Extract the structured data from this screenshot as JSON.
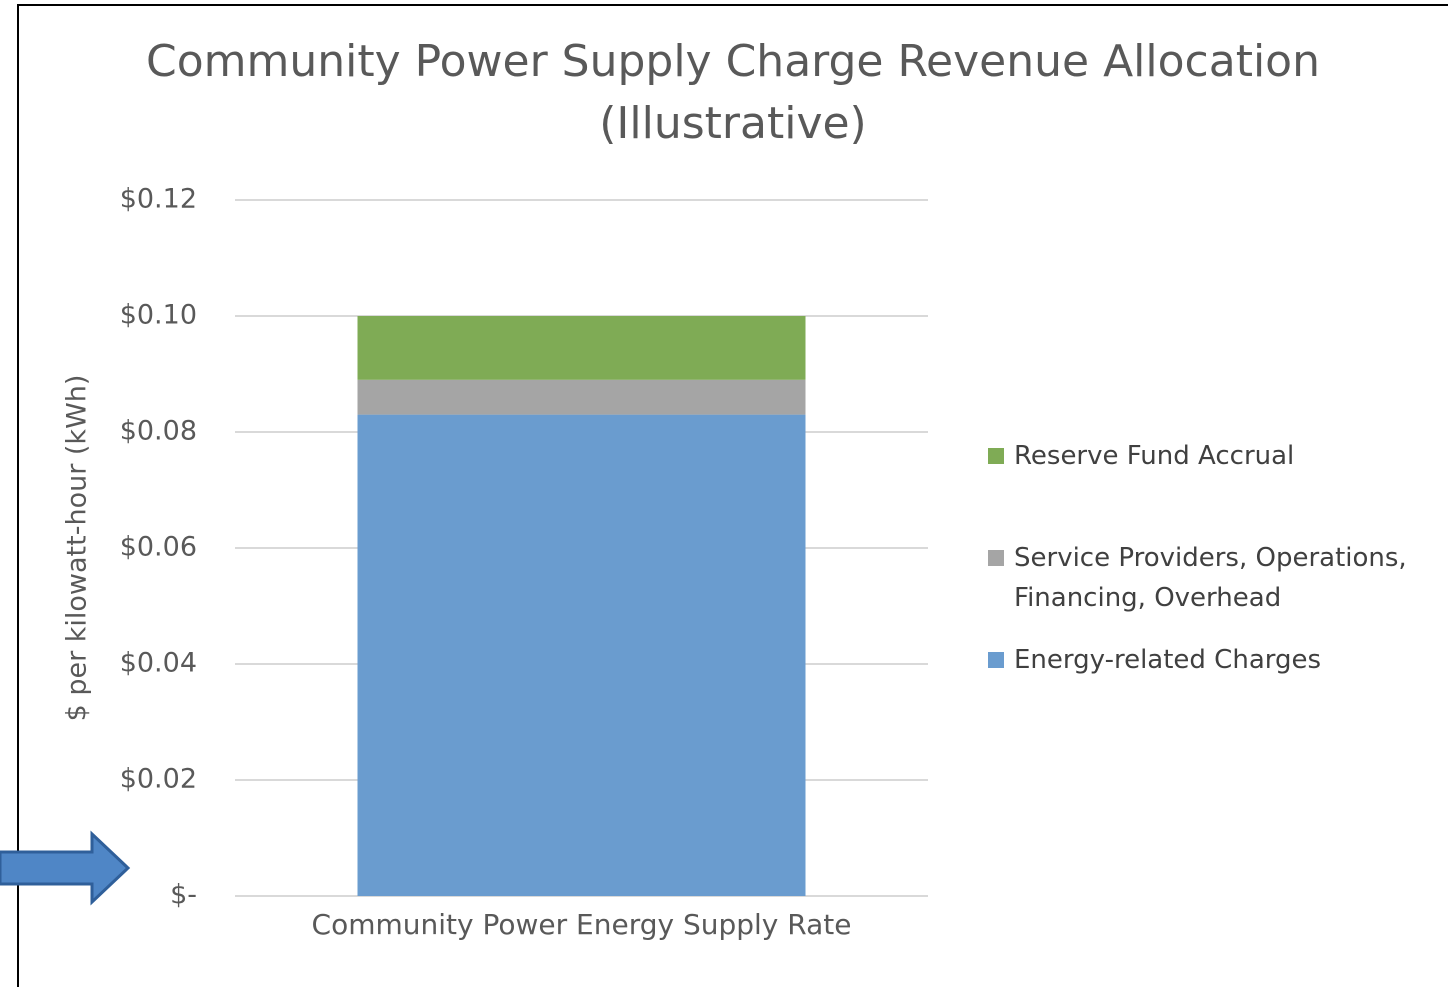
{
  "chart_data": {
    "type": "bar",
    "stacked": true,
    "title": [
      "Community Power Supply Charge Revenue Allocation",
      "(Illustrative)"
    ],
    "y_label": "$ per kilowatt-hour (kWh)",
    "categories": [
      "Community Power Energy Supply Rate"
    ],
    "series": [
      {
        "name": "Energy-related Charges",
        "color": "#6a9ccf",
        "values": [
          0.083
        ]
      },
      {
        "name": "Service Providers, Operations, Financing, Overhead",
        "color": "#a5a5a5",
        "values": [
          0.006
        ]
      },
      {
        "name": "Reserve Fund Accrual",
        "color": "#7fab55",
        "values": [
          0.011
        ]
      }
    ],
    "ylim": [
      0,
      0.12
    ],
    "yticks": [
      {
        "value": 0,
        "label": "$-"
      },
      {
        "value": 0.02,
        "label": "$0.02"
      },
      {
        "value": 0.04,
        "label": "$0.04"
      },
      {
        "value": 0.06,
        "label": "$0.06"
      },
      {
        "value": 0.08,
        "label": "$0.08"
      },
      {
        "value": 0.1,
        "label": "$0.10"
      },
      {
        "value": 0.12,
        "label": "$0.12"
      }
    ],
    "grid": true,
    "legend": "right"
  }
}
